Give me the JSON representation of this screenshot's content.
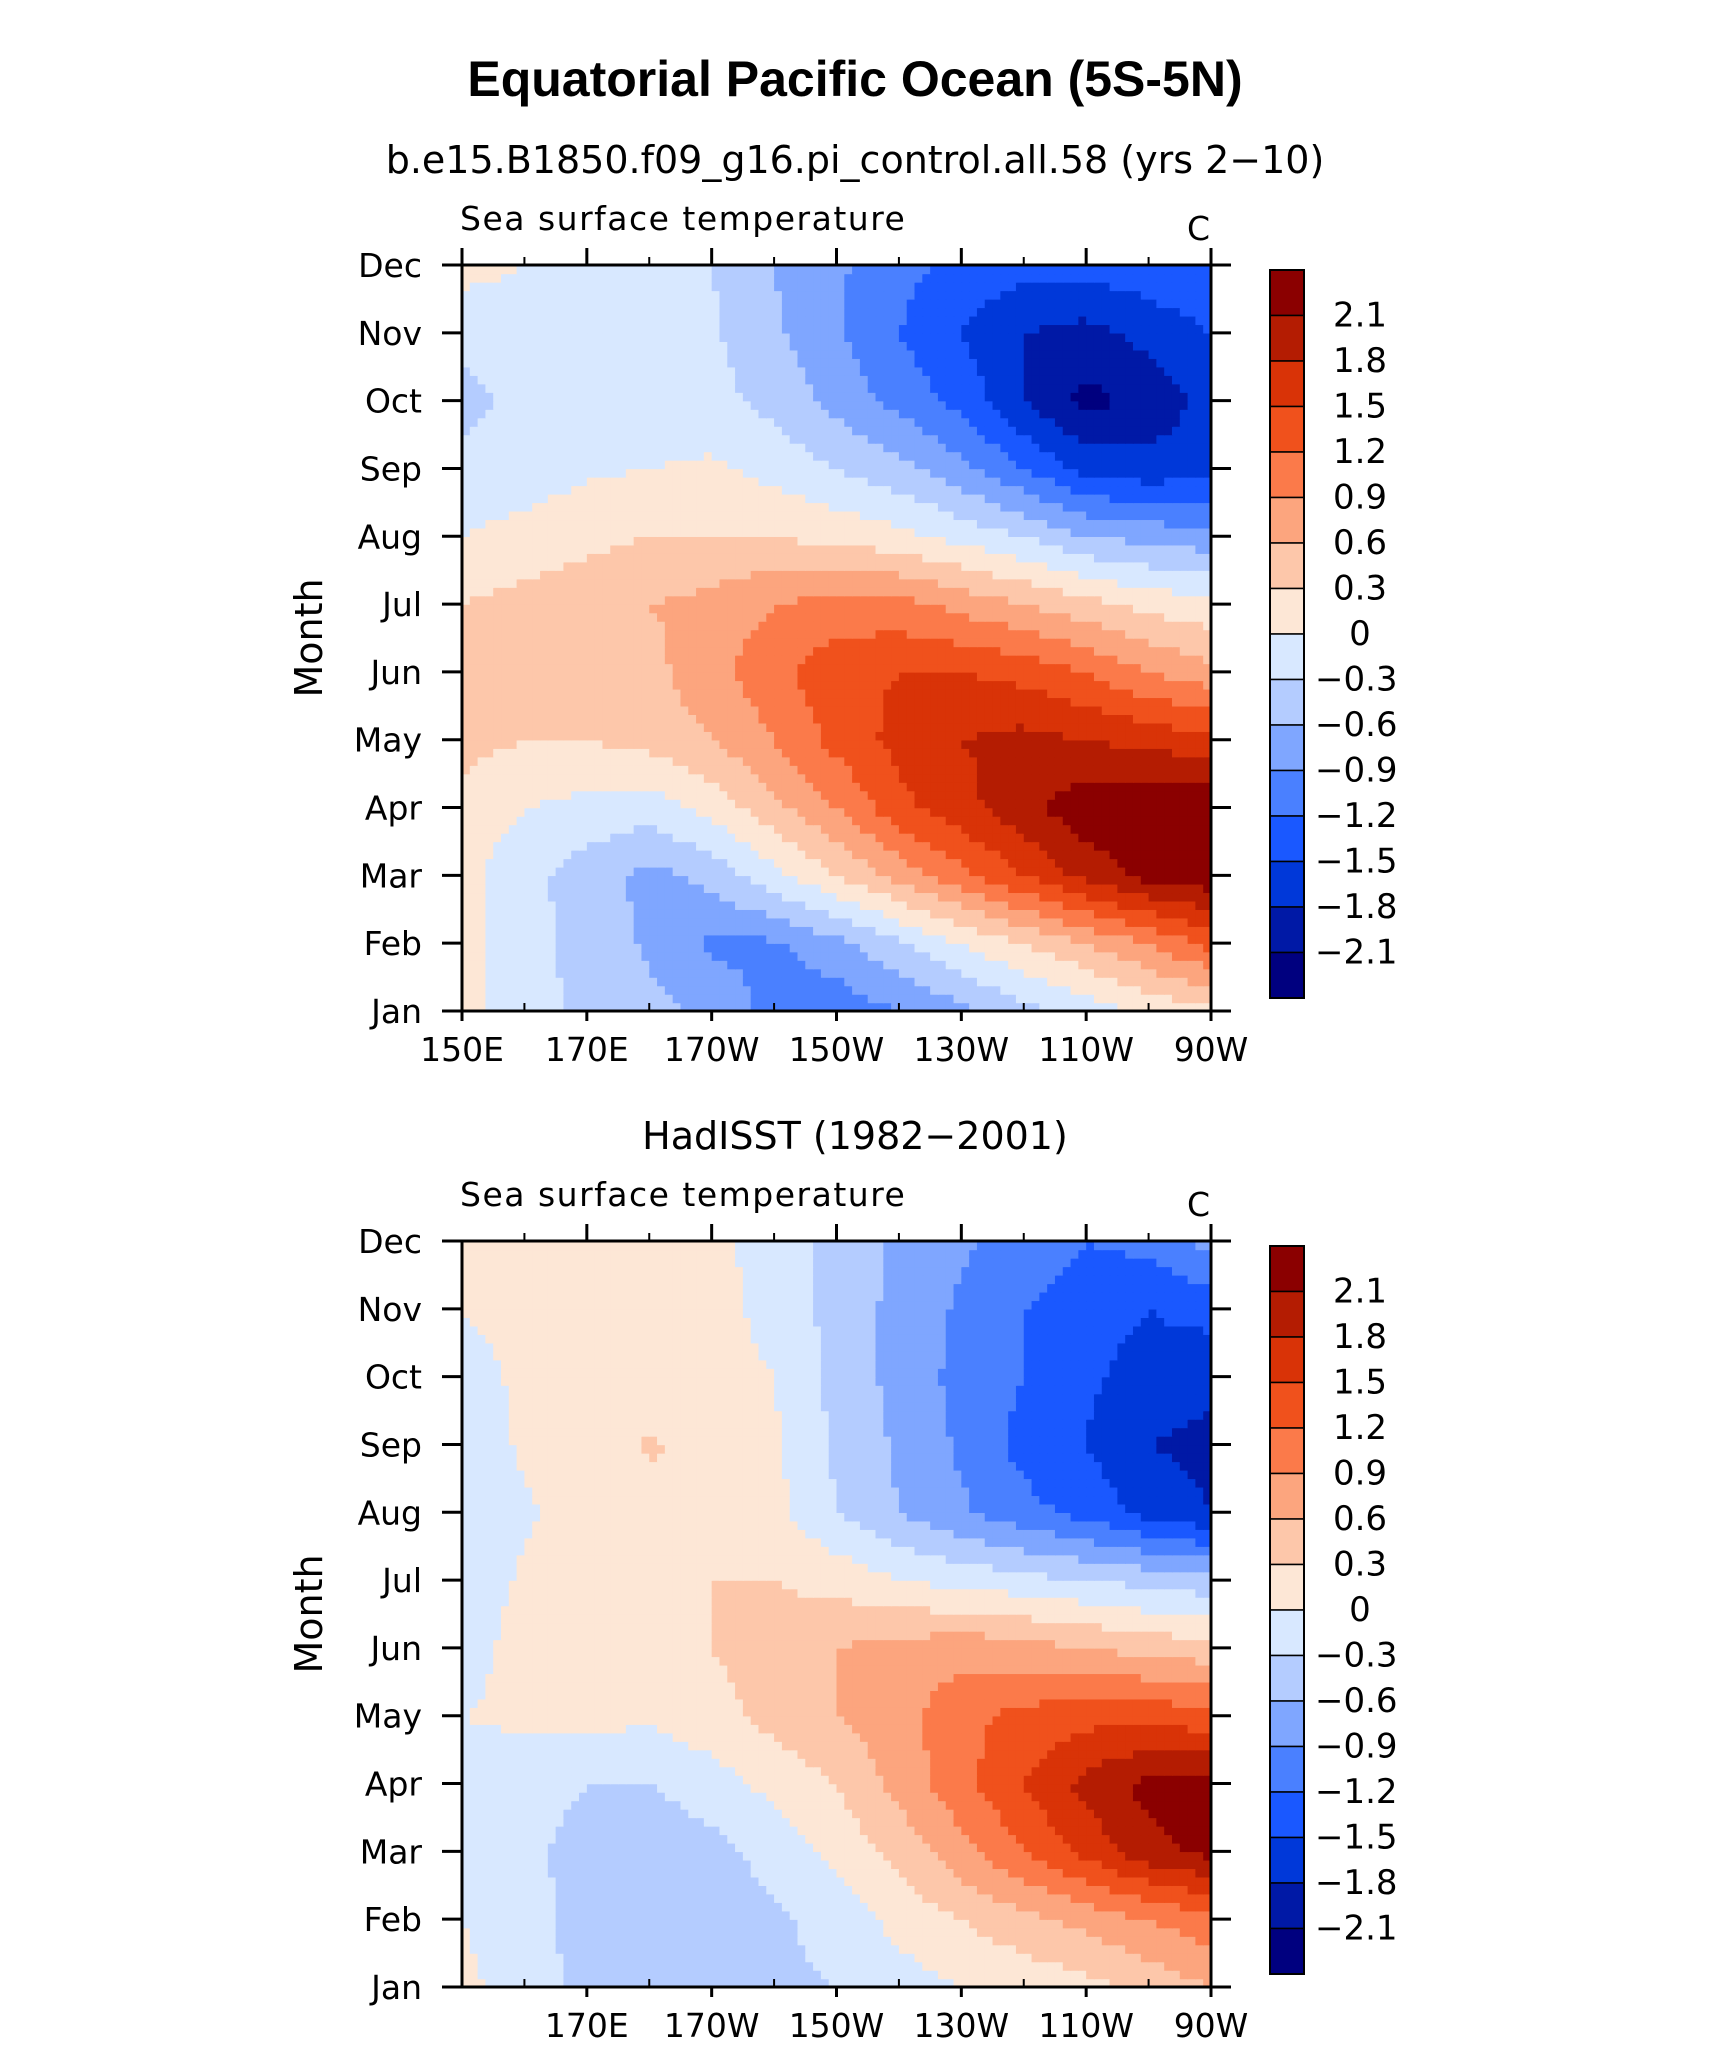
{
  "main_title": "Equatorial Pacific Ocean (5S-5N)",
  "chart_data": [
    {
      "type": "heatmap",
      "title": "b.e15.B1850.f09_g16.pi_control.all.58 (yrs 2−10)",
      "left_label": "Sea surface temperature",
      "right_label": "C",
      "ylabel": "Month",
      "xlabel": "",
      "x_ticks": [
        "150E",
        "170E",
        "170W",
        "150W",
        "130W",
        "110W",
        "90W"
      ],
      "x_tick_lon": [
        150,
        170,
        190,
        210,
        230,
        250,
        270
      ],
      "y_ticks": [
        "Jan",
        "Feb",
        "Mar",
        "Apr",
        "May",
        "Jun",
        "Jul",
        "Aug",
        "Sep",
        "Oct",
        "Nov",
        "Dec"
      ],
      "xlim_lon": [
        150,
        270
      ],
      "levels": [
        "2.1",
        "1.8",
        "1.5",
        "1.2",
        "0.9",
        "0.6",
        "0.3",
        "0",
        "−0.3",
        "−0.6",
        "−0.9",
        "−1.2",
        "−1.5",
        "−1.8",
        "−2.1"
      ],
      "grid_lon": [
        150,
        160,
        170,
        180,
        190,
        200,
        210,
        220,
        230,
        240,
        250,
        260,
        270
      ],
      "grid_months": [
        "Jan",
        "Feb",
        "Mar",
        "Apr",
        "May",
        "Jun",
        "Jul",
        "Aug",
        "Sep",
        "Oct",
        "Nov",
        "Dec"
      ],
      "values": [
        [
          0.1,
          -0.2,
          -0.35,
          -0.5,
          -0.7,
          -1.0,
          -1.1,
          -0.9,
          -0.7,
          -0.4,
          -0.2,
          0.1,
          0.2
        ],
        [
          0.1,
          -0.2,
          -0.4,
          -0.65,
          -0.95,
          -0.95,
          -0.7,
          -0.35,
          0.0,
          0.3,
          0.6,
          0.9,
          1.3
        ],
        [
          0.1,
          -0.2,
          -0.45,
          -0.7,
          -0.5,
          -0.1,
          0.3,
          0.7,
          1.1,
          1.5,
          1.9,
          2.2,
          2.3
        ],
        [
          0.2,
          0.0,
          -0.1,
          -0.15,
          0.1,
          0.5,
          0.9,
          1.4,
          1.7,
          2.0,
          2.3,
          2.4,
          2.4
        ],
        [
          0.4,
          0.3,
          0.3,
          0.4,
          0.6,
          0.9,
          1.3,
          1.6,
          1.8,
          1.9,
          1.8,
          1.7,
          1.6
        ],
        [
          0.5,
          0.45,
          0.4,
          0.5,
          0.8,
          1.1,
          1.4,
          1.5,
          1.5,
          1.4,
          1.2,
          0.9,
          0.7
        ],
        [
          0.3,
          0.4,
          0.5,
          0.6,
          0.7,
          0.9,
          1.0,
          1.0,
          0.8,
          0.6,
          0.4,
          0.2,
          0.1
        ],
        [
          0.0,
          0.1,
          0.2,
          0.3,
          0.3,
          0.3,
          0.2,
          0.1,
          -0.1,
          -0.3,
          -0.6,
          -0.7,
          -0.8
        ],
        [
          -0.2,
          -0.15,
          -0.05,
          0.0,
          0.05,
          -0.1,
          -0.3,
          -0.5,
          -0.8,
          -1.2,
          -1.6,
          -1.7,
          -1.6
        ],
        [
          -0.4,
          -0.2,
          -0.15,
          -0.15,
          -0.2,
          -0.4,
          -0.7,
          -1.0,
          -1.3,
          -1.8,
          -2.2,
          -2.0,
          -1.7
        ],
        [
          -0.2,
          -0.15,
          -0.15,
          -0.15,
          -0.25,
          -0.55,
          -0.85,
          -1.2,
          -1.5,
          -1.8,
          -1.9,
          -1.7,
          -1.5
        ],
        [
          0.1,
          0.0,
          -0.1,
          -0.2,
          -0.3,
          -0.6,
          -0.85,
          -1.1,
          -1.3,
          -1.4,
          -1.4,
          -1.3,
          -1.2
        ]
      ]
    },
    {
      "type": "heatmap",
      "title": "HadISST (1982−2001)",
      "left_label": "Sea surface temperature",
      "right_label": "C",
      "ylabel": "Month",
      "xlabel": "",
      "x_ticks": [
        "170E",
        "170W",
        "150W",
        "130W",
        "110W",
        "90W"
      ],
      "x_tick_lon": [
        170,
        190,
        210,
        230,
        250,
        270
      ],
      "y_ticks": [
        "Jan",
        "Feb",
        "Mar",
        "Apr",
        "May",
        "Jun",
        "Jul",
        "Aug",
        "Sep",
        "Oct",
        "Nov",
        "Dec"
      ],
      "xlim_lon": [
        150,
        270
      ],
      "levels": [
        "2.1",
        "1.8",
        "1.5",
        "1.2",
        "0.9",
        "0.6",
        "0.3",
        "0",
        "−0.3",
        "−0.6",
        "−0.9",
        "−1.2",
        "−1.5",
        "−1.8",
        "−2.1"
      ],
      "grid_lon": [
        150,
        160,
        170,
        180,
        190,
        200,
        210,
        220,
        230,
        240,
        250,
        260,
        270
      ],
      "grid_months": [
        "Jan",
        "Feb",
        "Mar",
        "Apr",
        "May",
        "Jun",
        "Jul",
        "Aug",
        "Sep",
        "Oct",
        "Nov",
        "Dec"
      ],
      "values": [
        [
          0.1,
          -0.2,
          -0.35,
          -0.4,
          -0.4,
          -0.35,
          -0.3,
          -0.15,
          0.0,
          0.1,
          0.2,
          0.4,
          0.6
        ],
        [
          0.0,
          -0.2,
          -0.4,
          -0.45,
          -0.45,
          -0.35,
          -0.2,
          0.1,
          0.3,
          0.5,
          0.7,
          0.9,
          1.1
        ],
        [
          -0.1,
          -0.2,
          -0.45,
          -0.5,
          -0.4,
          -0.2,
          0.1,
          0.4,
          0.8,
          1.2,
          1.6,
          2.0,
          2.2
        ],
        [
          -0.1,
          -0.15,
          -0.3,
          -0.3,
          -0.15,
          0.1,
          0.3,
          0.7,
          1.1,
          1.5,
          1.9,
          2.2,
          2.2
        ],
        [
          0.0,
          0.05,
          0.1,
          0.05,
          0.2,
          0.4,
          0.6,
          0.8,
          1.1,
          1.3,
          1.4,
          1.4,
          1.3
        ],
        [
          -0.1,
          0.1,
          0.2,
          0.2,
          0.3,
          0.4,
          0.6,
          0.7,
          0.8,
          0.7,
          0.6,
          0.5,
          0.4
        ],
        [
          -0.2,
          0.05,
          0.2,
          0.25,
          0.3,
          0.3,
          0.2,
          0.0,
          -0.1,
          -0.2,
          -0.3,
          -0.4,
          -0.5
        ],
        [
          -0.3,
          -0.05,
          0.15,
          0.25,
          0.25,
          0.1,
          -0.3,
          -0.6,
          -0.85,
          -1.1,
          -1.3,
          -1.6,
          -1.8
        ],
        [
          -0.2,
          0.05,
          0.2,
          0.32,
          0.25,
          0.05,
          -0.35,
          -0.65,
          -0.95,
          -1.3,
          -1.5,
          -1.8,
          -1.9
        ],
        [
          -0.1,
          0.05,
          0.15,
          0.2,
          0.15,
          0.0,
          -0.4,
          -0.7,
          -1.0,
          -1.2,
          -1.45,
          -1.6,
          -1.7
        ],
        [
          0.0,
          0.1,
          0.15,
          0.15,
          0.1,
          -0.1,
          -0.4,
          -0.7,
          -0.95,
          -1.2,
          -1.4,
          -1.5,
          -1.4
        ],
        [
          0.1,
          0.15,
          0.2,
          0.2,
          0.1,
          -0.15,
          -0.4,
          -0.65,
          -0.85,
          -1.0,
          -1.2,
          -1.1,
          -0.8
        ]
      ]
    }
  ],
  "colors": {
    "scale": [
      "#00007f",
      "#0019a6",
      "#0038d9",
      "#1a58ff",
      "#4a80ff",
      "#7fa6ff",
      "#b4ccff",
      "#d8e8ff",
      "#fde7d6",
      "#fdc7aa",
      "#fca57e",
      "#fb7a4a",
      "#f0511c",
      "#d93307",
      "#b41c02",
      "#8b0000"
    ]
  }
}
